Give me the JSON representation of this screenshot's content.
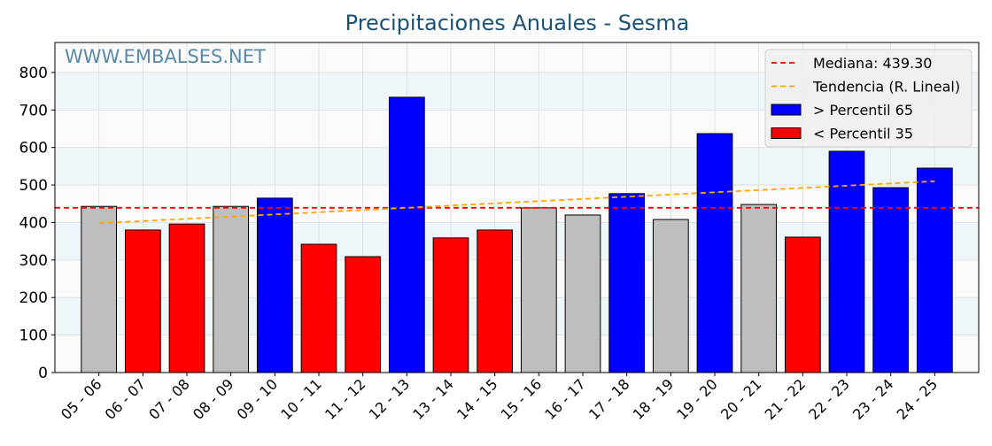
{
  "chart_data": {
    "type": "bar",
    "title": "Precipitaciones Anuales - Sesma",
    "watermark": "WWW.EMBALSES.NET",
    "xlabel": "",
    "ylabel": "",
    "ylim": [
      0,
      880
    ],
    "yticks": [
      0,
      100,
      200,
      300,
      400,
      500,
      600,
      700,
      800
    ],
    "grid": true,
    "categories": [
      "05 - 06",
      "06 - 07",
      "07 - 08",
      "08 - 09",
      "09 - 10",
      "10 - 11",
      "11 - 12",
      "12 - 13",
      "13 - 14",
      "14 - 15",
      "15 - 16",
      "16 - 17",
      "17 - 18",
      "18 - 19",
      "19 - 20",
      "20 - 21",
      "21 - 22",
      "22 - 23",
      "23 - 24",
      "24 - 25"
    ],
    "values": [
      443,
      380,
      396,
      443,
      465,
      342,
      309,
      734,
      359,
      380,
      439,
      420,
      477,
      408,
      637,
      448,
      361,
      590,
      493,
      545
    ],
    "classes": [
      "mid",
      "low",
      "low",
      "mid",
      "high",
      "low",
      "low",
      "high",
      "low",
      "low",
      "mid",
      "mid",
      "high",
      "mid",
      "high",
      "mid",
      "low",
      "high",
      "high",
      "high"
    ],
    "colors": {
      "high": "#0000ff",
      "low": "#ff0000",
      "mid": "#bebebe",
      "median": "#ff0000",
      "trend": "#ffa500",
      "title": "#1a5276",
      "watermark": "#5a8aa8"
    },
    "median": 439.3,
    "trend": {
      "start": 398,
      "end": 510
    },
    "legend": {
      "position": "top-right",
      "items": [
        "Mediana: 439.30",
        "Tendencia (R. Lineal)",
        " > Percentil 65",
        " < Percentil 35"
      ]
    }
  }
}
